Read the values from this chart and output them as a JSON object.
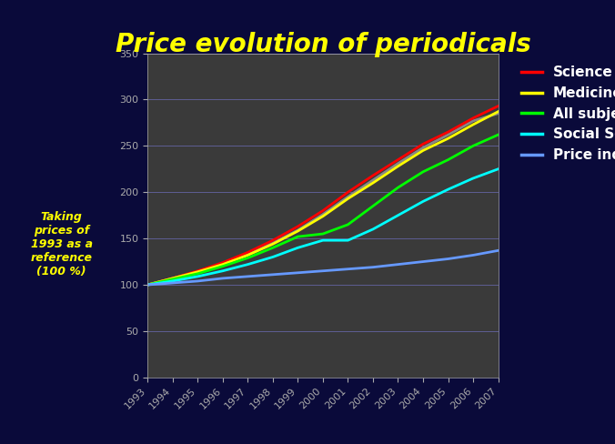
{
  "title": "Price evolution of periodicals",
  "title_color": "#FFFF00",
  "title_fontsize": 20,
  "background_outer": "#0a0a3a",
  "background_plot": "#3a3a3a",
  "years": [
    1993,
    1994,
    1995,
    1996,
    1997,
    1998,
    1999,
    2000,
    2001,
    2002,
    2003,
    2004,
    2005,
    2006,
    2007
  ],
  "series": [
    {
      "name": "Science",
      "color": "#FF0000",
      "values": [
        100,
        107,
        115,
        124,
        135,
        148,
        163,
        180,
        200,
        218,
        235,
        252,
        265,
        280,
        293
      ]
    },
    {
      "name": "Medicine",
      "color": "#FFFF00",
      "values": [
        100,
        107,
        114,
        122,
        132,
        144,
        158,
        174,
        193,
        210,
        228,
        245,
        258,
        273,
        287
      ]
    },
    {
      "name": "All subjects",
      "color": "#00FF00",
      "values": [
        100,
        106,
        112,
        120,
        129,
        140,
        152,
        155,
        165,
        185,
        205,
        222,
        235,
        250,
        262
      ]
    },
    {
      "name": "Social Scienc",
      "color": "#00FFFF",
      "values": [
        100,
        104,
        109,
        115,
        122,
        130,
        140,
        148,
        148,
        160,
        175,
        190,
        203,
        215,
        225
      ]
    },
    {
      "name": "Price index",
      "color": "#6699FF",
      "values": [
        100,
        102,
        104,
        107,
        109,
        111,
        113,
        115,
        117,
        119,
        122,
        125,
        128,
        132,
        137
      ]
    }
  ],
  "gray_series": [
    100,
    107,
    114,
    123,
    133,
    145,
    159,
    176,
    195,
    213,
    231,
    248,
    262,
    277,
    285
  ],
  "gray_color": "#888888",
  "ylim": [
    0,
    350
  ],
  "yticks": [
    0,
    50,
    100,
    150,
    200,
    250,
    300,
    350
  ],
  "tick_color": "#AAAAAA",
  "grid_color": "#6666AA",
  "legend_text_color": "#FFFFFF",
  "annotation_text": "Taking\nprices of\n1993 as a\nreference\n(100 %)",
  "annotation_color": "#FFFF00",
  "annotation_fontsize": 9
}
